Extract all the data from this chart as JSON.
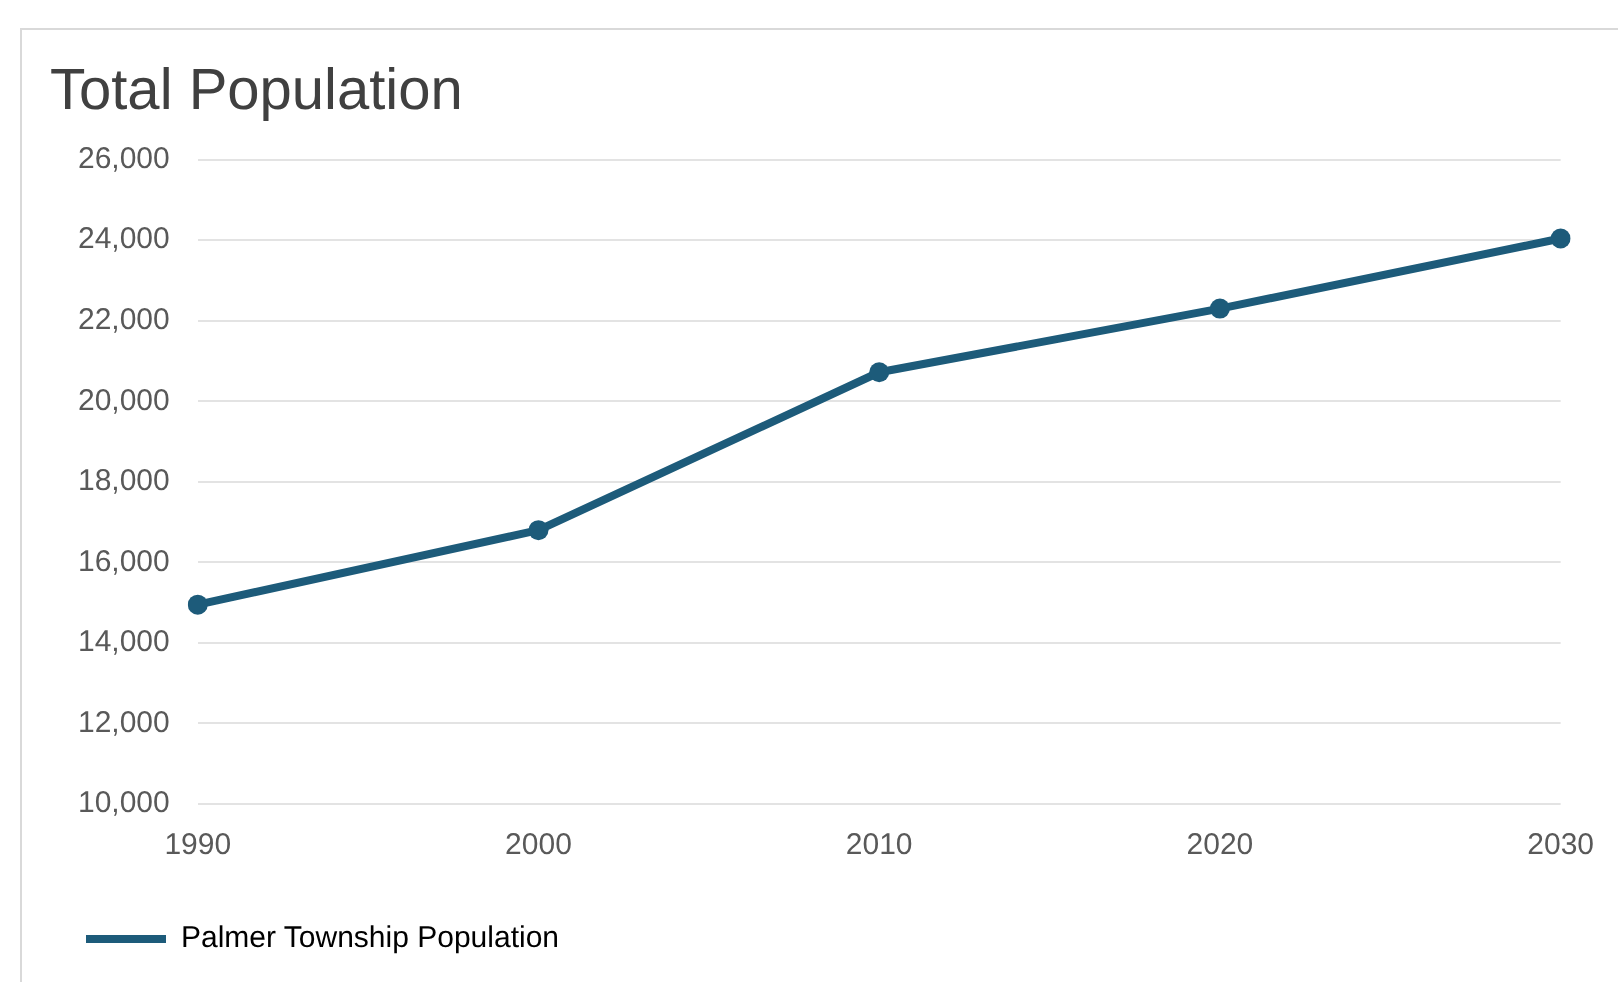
{
  "chart_data": {
    "type": "line",
    "title": "Total Population",
    "categories": [
      "1990",
      "2000",
      "2010",
      "2020",
      "2030"
    ],
    "series": [
      {
        "name": "Palmer Township Population",
        "color": "#1d5b7a",
        "values": [
          14950,
          16800,
          20720,
          22300,
          24040
        ]
      }
    ],
    "ylim": [
      10000,
      26000
    ],
    "yticks": [
      {
        "value": 10000,
        "label": "10,000"
      },
      {
        "value": 12000,
        "label": "12,000"
      },
      {
        "value": 14000,
        "label": "14,000"
      },
      {
        "value": 16000,
        "label": "16,000"
      },
      {
        "value": 18000,
        "label": "18,000"
      },
      {
        "value": 20000,
        "label": "20,000"
      },
      {
        "value": 22000,
        "label": "22,000"
      },
      {
        "value": 24000,
        "label": "24,000"
      },
      {
        "value": 26000,
        "label": "26,000"
      }
    ],
    "grid": "y",
    "legend": "bottom left",
    "marker": "circle",
    "line_style": "solid"
  }
}
